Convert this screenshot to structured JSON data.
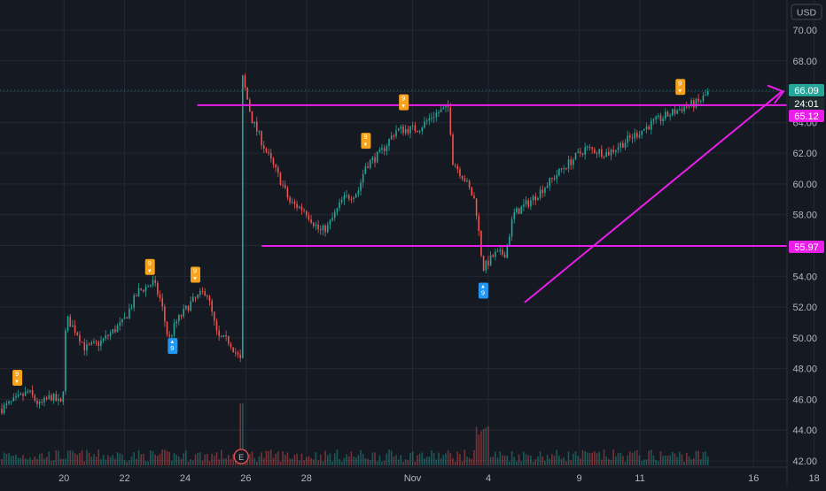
{
  "currency": "USD",
  "price_labels": {
    "last": {
      "text": "66.09",
      "color": "#26a69a"
    },
    "countdown": {
      "text": "24:01",
      "color": "#26a69a"
    },
    "upper_line": {
      "text": "65.12",
      "color": "#e91ee8"
    },
    "lower_line": {
      "text": "55.97",
      "color": "#e91ee8"
    }
  },
  "chart_data": {
    "type": "candlestick",
    "title": "",
    "y_ticks": [
      "70.00",
      "68.00",
      "66.00",
      "64.00",
      "62.00",
      "60.00",
      "58.00",
      "56.00",
      "54.00",
      "52.00",
      "50.00",
      "48.00",
      "46.00",
      "44.00",
      "42.00"
    ],
    "ylim": [
      41.8,
      71.6
    ],
    "x_ticks": [
      {
        "label": "20",
        "t": 0.04
      },
      {
        "label": "22",
        "t": 0.12
      },
      {
        "label": "24",
        "t": 0.2
      },
      {
        "label": "26",
        "t": 0.28
      },
      {
        "label": "28",
        "t": 0.36
      },
      {
        "label": "Nov",
        "t": 0.5
      },
      {
        "label": "4",
        "t": 0.6
      },
      {
        "label": "9",
        "t": 0.72
      },
      {
        "label": "11",
        "t": 0.8
      },
      {
        "label": "16",
        "t": 0.95
      },
      {
        "label": "18",
        "t": 1.03
      }
    ],
    "x_tick_labels": [
      "20",
      "22",
      "24",
      "26",
      "28",
      "Nov",
      "4",
      "9",
      "11",
      "16",
      "18"
    ],
    "horizontal_lines": [
      {
        "name": "resistance-line",
        "price": 65.12,
        "color": "#e91ee8"
      },
      {
        "name": "support-line",
        "price": 55.97,
        "color": "#e91ee8"
      }
    ],
    "trend_line": {
      "from_price": 52.3,
      "to_price": 66.0,
      "color": "#e91ee8"
    },
    "anchors": [
      [
        0,
        45.4
      ],
      [
        0.02,
        46.0
      ],
      [
        0.035,
        46.5
      ],
      [
        0.05,
        45.6
      ],
      [
        0.065,
        46.2
      ],
      [
        0.08,
        45.6
      ],
      [
        0.085,
        51.3
      ],
      [
        0.1,
        50.3
      ],
      [
        0.11,
        49.3
      ],
      [
        0.13,
        49.7
      ],
      [
        0.16,
        51.0
      ],
      [
        0.18,
        53.0
      ],
      [
        0.2,
        53.6
      ],
      [
        0.21,
        52.4
      ],
      [
        0.22,
        49.8
      ],
      [
        0.23,
        51.0
      ],
      [
        0.25,
        52.3
      ],
      [
        0.27,
        53.1
      ],
      [
        0.285,
        50.0
      ],
      [
        0.3,
        49.8
      ],
      [
        0.315,
        48.5
      ],
      [
        0.315,
        67.5
      ],
      [
        0.33,
        64.2
      ],
      [
        0.35,
        62.0
      ],
      [
        0.37,
        60.0
      ],
      [
        0.38,
        58.8
      ],
      [
        0.4,
        58.3
      ],
      [
        0.42,
        56.9
      ],
      [
        0.43,
        57.2
      ],
      [
        0.45,
        59.0
      ],
      [
        0.47,
        59.5
      ],
      [
        0.48,
        61.2
      ],
      [
        0.5,
        62.0
      ],
      [
        0.52,
        63.5
      ],
      [
        0.55,
        63.6
      ],
      [
        0.57,
        64.5
      ],
      [
        0.59,
        65.0
      ],
      [
        0.595,
        61.5
      ],
      [
        0.61,
        60.4
      ],
      [
        0.625,
        58.8
      ],
      [
        0.635,
        54.5
      ],
      [
        0.65,
        55.4
      ],
      [
        0.665,
        55.5
      ],
      [
        0.675,
        58.0
      ],
      [
        0.7,
        59.0
      ],
      [
        0.72,
        60.0
      ],
      [
        0.74,
        61.0
      ],
      [
        0.77,
        62.3
      ],
      [
        0.8,
        62.0
      ],
      [
        0.83,
        63.0
      ],
      [
        0.86,
        64.0
      ],
      [
        0.88,
        64.5
      ],
      [
        0.9,
        65.0
      ],
      [
        0.92,
        65.3
      ],
      [
        0.935,
        66.09
      ]
    ],
    "volume_range": [
      0,
      1
    ],
    "markers": [
      {
        "label": "9",
        "type": "sell",
        "t": 0.02,
        "price": 46.6
      },
      {
        "label": "9",
        "type": "sell",
        "t": 0.195,
        "price": 53.8
      },
      {
        "label": "9",
        "type": "buy",
        "t": 0.225,
        "price": 49.7
      },
      {
        "label": "9",
        "type": "sell",
        "t": 0.255,
        "price": 53.3
      },
      {
        "label": "9",
        "type": "sell",
        "t": 0.48,
        "price": 62.0
      },
      {
        "label": "9",
        "type": "sell",
        "t": 0.53,
        "price": 64.5
      },
      {
        "label": "9",
        "type": "buy",
        "t": 0.635,
        "price": 53.3
      },
      {
        "label": "9",
        "type": "sell",
        "t": 0.895,
        "price": 65.5
      }
    ],
    "earnings_marker": {
      "label": "E",
      "t": 0.316
    }
  },
  "colors": {
    "background": "#151922",
    "grid": "#242833",
    "axis_text": "#b2b5be",
    "up": "#26a69a",
    "down": "#ef5350",
    "sell_marker": "#f7a21b",
    "buy_marker": "#2196f3",
    "accent": "#e91ee8",
    "last_price_line": "#26a69a"
  }
}
